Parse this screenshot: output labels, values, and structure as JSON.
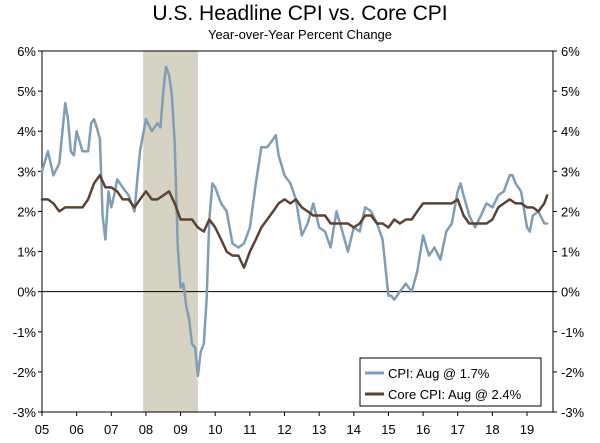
{
  "chart_data": {
    "type": "line",
    "title": "U.S. Headline CPI vs. Core CPI",
    "subtitle": "Year-over-Year Percent Change",
    "ylim": [
      -3,
      6
    ],
    "y_ticks": [
      "-3%",
      "-2%",
      "-1%",
      "0%",
      "1%",
      "2%",
      "3%",
      "4%",
      "5%",
      "6%"
    ],
    "xlim": [
      2005.0,
      2019.75
    ],
    "x_tick_labels": [
      "05",
      "06",
      "07",
      "08",
      "09",
      "10",
      "11",
      "12",
      "13",
      "14",
      "15",
      "16",
      "17",
      "18",
      "19"
    ],
    "recession": {
      "start": 2007.92,
      "end": 2009.5
    },
    "colors": {
      "cpi": "#7f9db5",
      "core": "#5b4233",
      "recession": "#d6d2c4"
    },
    "legend": {
      "cpi": "CPI: Aug @ 1.7%",
      "core": "Core CPI: Aug @ 2.4%",
      "position": "bottom-right"
    },
    "series": [
      {
        "name": "CPI",
        "x": [
          2005.0,
          2005.17,
          2005.33,
          2005.5,
          2005.67,
          2005.75,
          2005.83,
          2005.92,
          2006.0,
          2006.17,
          2006.33,
          2006.42,
          2006.5,
          2006.58,
          2006.67,
          2006.75,
          2006.83,
          2006.92,
          2007.0,
          2007.08,
          2007.17,
          2007.33,
          2007.5,
          2007.67,
          2007.75,
          2007.83,
          2008.0,
          2008.17,
          2008.33,
          2008.42,
          2008.5,
          2008.58,
          2008.67,
          2008.75,
          2008.83,
          2008.92,
          2009.0,
          2009.08,
          2009.17,
          2009.25,
          2009.33,
          2009.42,
          2009.5,
          2009.58,
          2009.67,
          2009.75,
          2009.83,
          2009.92,
          2010.0,
          2010.17,
          2010.33,
          2010.5,
          2010.67,
          2010.83,
          2011.0,
          2011.17,
          2011.33,
          2011.5,
          2011.67,
          2011.75,
          2011.83,
          2012.0,
          2012.17,
          2012.33,
          2012.5,
          2012.67,
          2012.83,
          2013.0,
          2013.17,
          2013.33,
          2013.5,
          2013.67,
          2013.83,
          2014.0,
          2014.17,
          2014.33,
          2014.5,
          2014.67,
          2014.83,
          2015.0,
          2015.08,
          2015.17,
          2015.33,
          2015.5,
          2015.67,
          2015.83,
          2016.0,
          2016.17,
          2016.33,
          2016.5,
          2016.67,
          2016.83,
          2017.0,
          2017.08,
          2017.17,
          2017.33,
          2017.5,
          2017.67,
          2017.83,
          2018.0,
          2018.17,
          2018.33,
          2018.5,
          2018.58,
          2018.67,
          2018.83,
          2019.0,
          2019.08,
          2019.17,
          2019.33,
          2019.5,
          2019.58
        ],
        "values": [
          3.0,
          3.5,
          2.9,
          3.2,
          4.7,
          4.3,
          3.5,
          3.4,
          4.0,
          3.5,
          3.5,
          4.2,
          4.3,
          4.1,
          3.8,
          1.9,
          1.3,
          2.5,
          2.1,
          2.4,
          2.8,
          2.6,
          2.4,
          2.0,
          2.8,
          3.5,
          4.3,
          4.0,
          4.2,
          4.1,
          5.0,
          5.6,
          5.4,
          4.9,
          3.7,
          1.1,
          0.1,
          0.2,
          -0.4,
          -0.7,
          -1.3,
          -1.4,
          -2.1,
          -1.5,
          -1.3,
          -0.2,
          1.8,
          2.7,
          2.6,
          2.2,
          2.0,
          1.2,
          1.1,
          1.2,
          1.6,
          2.7,
          3.6,
          3.6,
          3.8,
          3.9,
          3.4,
          2.9,
          2.7,
          2.3,
          1.4,
          1.7,
          2.2,
          1.6,
          1.5,
          1.1,
          2.0,
          1.5,
          1.0,
          1.6,
          1.5,
          2.1,
          2.0,
          1.7,
          1.3,
          -0.1,
          -0.1,
          -0.2,
          0.0,
          0.2,
          0.0,
          0.5,
          1.4,
          0.9,
          1.1,
          0.8,
          1.5,
          1.7,
          2.5,
          2.7,
          2.4,
          1.9,
          1.6,
          1.9,
          2.2,
          2.1,
          2.4,
          2.5,
          2.9,
          2.9,
          2.7,
          2.5,
          1.6,
          1.5,
          1.9,
          2.0,
          1.7,
          1.7
        ]
      },
      {
        "name": "Core CPI",
        "x": [
          2005.0,
          2005.17,
          2005.33,
          2005.5,
          2005.67,
          2005.83,
          2006.0,
          2006.17,
          2006.33,
          2006.5,
          2006.67,
          2006.83,
          2007.0,
          2007.17,
          2007.33,
          2007.5,
          2007.67,
          2007.83,
          2008.0,
          2008.17,
          2008.33,
          2008.5,
          2008.67,
          2008.83,
          2009.0,
          2009.17,
          2009.33,
          2009.5,
          2009.67,
          2009.83,
          2010.0,
          2010.17,
          2010.33,
          2010.5,
          2010.67,
          2010.83,
          2011.0,
          2011.17,
          2011.33,
          2011.5,
          2011.67,
          2011.83,
          2012.0,
          2012.17,
          2012.33,
          2012.5,
          2012.67,
          2012.83,
          2013.0,
          2013.17,
          2013.33,
          2013.5,
          2013.67,
          2013.83,
          2014.0,
          2014.17,
          2014.33,
          2014.5,
          2014.67,
          2014.83,
          2015.0,
          2015.17,
          2015.33,
          2015.5,
          2015.67,
          2015.83,
          2016.0,
          2016.17,
          2016.33,
          2016.5,
          2016.67,
          2016.83,
          2017.0,
          2017.17,
          2017.33,
          2017.5,
          2017.67,
          2017.83,
          2018.0,
          2018.17,
          2018.33,
          2018.5,
          2018.67,
          2018.83,
          2019.0,
          2019.17,
          2019.33,
          2019.5,
          2019.58
        ],
        "values": [
          2.3,
          2.3,
          2.2,
          2.0,
          2.1,
          2.1,
          2.1,
          2.1,
          2.3,
          2.7,
          2.9,
          2.6,
          2.6,
          2.5,
          2.3,
          2.3,
          2.1,
          2.3,
          2.5,
          2.3,
          2.3,
          2.4,
          2.5,
          2.2,
          1.8,
          1.8,
          1.8,
          1.6,
          1.5,
          1.8,
          1.6,
          1.3,
          1.0,
          0.9,
          0.9,
          0.6,
          1.0,
          1.3,
          1.6,
          1.8,
          2.0,
          2.2,
          2.3,
          2.2,
          2.3,
          2.1,
          2.0,
          1.9,
          1.9,
          1.9,
          1.7,
          1.7,
          1.7,
          1.7,
          1.6,
          1.7,
          1.9,
          1.9,
          1.7,
          1.7,
          1.6,
          1.8,
          1.7,
          1.8,
          1.8,
          2.0,
          2.2,
          2.2,
          2.2,
          2.2,
          2.2,
          2.2,
          2.3,
          1.9,
          1.7,
          1.7,
          1.7,
          1.7,
          1.8,
          2.1,
          2.2,
          2.3,
          2.2,
          2.2,
          2.1,
          2.1,
          2.0,
          2.2,
          2.4
        ]
      }
    ]
  }
}
